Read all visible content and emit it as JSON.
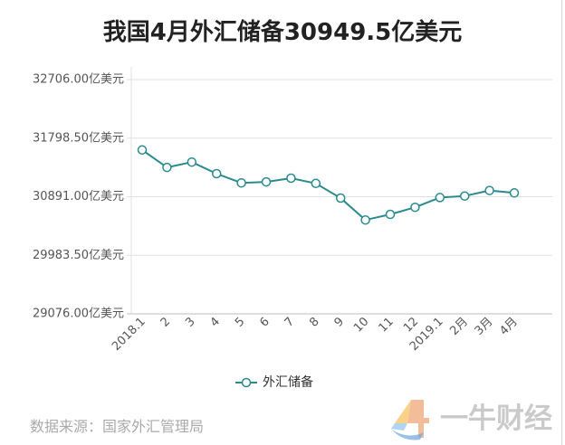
{
  "chart_data": {
    "type": "line",
    "title": "我国4月外汇储备30949.5亿美元",
    "categories": [
      "2018.1",
      "2",
      "3",
      "4",
      "5",
      "6",
      "7",
      "8",
      "9",
      "10",
      "11",
      "12",
      "2019.1",
      "2月",
      "3月",
      "4月"
    ],
    "series": [
      {
        "name": "外汇储备",
        "color": "#2a8a8e",
        "values": [
          31615,
          31345,
          31428,
          31249,
          31106,
          31121,
          31179,
          31097,
          30870,
          30531,
          30617,
          30727,
          30879,
          30902,
          30988,
          30949.5
        ]
      }
    ],
    "ylim": [
      29076,
      32706
    ],
    "y_ticks": [
      {
        "value": 32706,
        "label": "32706.00亿美元"
      },
      {
        "value": 31798.5,
        "label": "31798.50亿美元"
      },
      {
        "value": 30891,
        "label": "30891.00亿美元"
      },
      {
        "value": 29983.5,
        "label": "29983.50亿美元"
      },
      {
        "value": 29076,
        "label": "29076.00亿美元"
      }
    ],
    "grid": true,
    "legend": "bottom"
  },
  "source": "数据来源：国家外汇管理局",
  "watermark": {
    "text": "一牛财经",
    "logo": "yiniu-logo-icon"
  }
}
